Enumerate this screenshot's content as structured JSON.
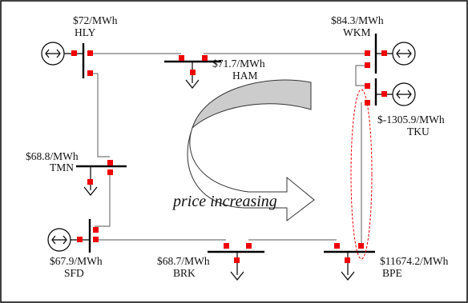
{
  "diagram": {
    "nodes": [
      {
        "id": "HLY",
        "name": "HLY",
        "price": "$72/MWh"
      },
      {
        "id": "HAM",
        "name": "HAM",
        "price": "$71.7/MWh"
      },
      {
        "id": "WKM",
        "name": "WKM",
        "price": "$84.3/MWh"
      },
      {
        "id": "TKU",
        "name": "TKU",
        "price": "$-1305.9/MWh"
      },
      {
        "id": "TMN",
        "name": "TMN",
        "price": "$68.8/MWh"
      },
      {
        "id": "SFD",
        "name": "SFD",
        "price": "$67.9/MWh"
      },
      {
        "id": "BRK",
        "name": "BRK",
        "price": "$68.7/MWh"
      },
      {
        "id": "BPE",
        "name": "BPE",
        "price": "$11674.2/MWh"
      }
    ],
    "annotation": "price increasing",
    "colors": {
      "breaker": "#ee0000",
      "line": "#777777",
      "bus": "#000000",
      "highlight": "#ee0000",
      "arrow_fill": "#cccccc"
    }
  }
}
